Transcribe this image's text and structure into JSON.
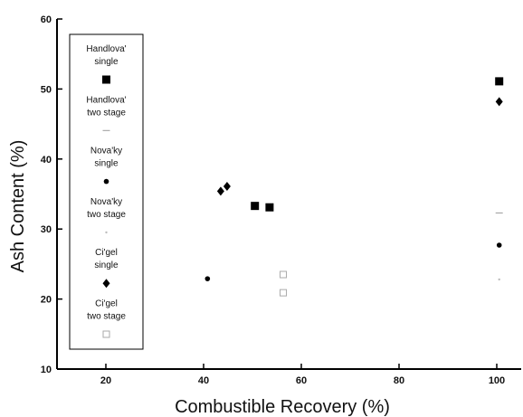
{
  "chart_data": {
    "type": "scatter",
    "xlabel": "Combustible Recovery (%)",
    "ylabel": "Ash Content (%)",
    "xlim": [
      10,
      105
    ],
    "ylim": [
      10,
      60
    ],
    "xticks": [
      20,
      40,
      60,
      80,
      100
    ],
    "yticks": [
      10,
      20,
      30,
      40,
      50,
      60
    ],
    "grid": false,
    "legend_position": "left inside plot",
    "series": [
      {
        "name": "Handlova' single",
        "marker": "square-filled",
        "color": "#000000",
        "points": [
          [
            50.5,
            33.3
          ],
          [
            53.5,
            33.1
          ],
          [
            100.5,
            51.1
          ]
        ]
      },
      {
        "name": "Handlova' two stage",
        "marker": "dash",
        "color": "#aaaaaa",
        "points": [
          [
            100.5,
            32.3
          ]
        ]
      },
      {
        "name": "Nova'ky single",
        "marker": "circle-filled",
        "color": "#000000",
        "points": [
          [
            40.8,
            22.9
          ],
          [
            100.5,
            27.7
          ]
        ]
      },
      {
        "name": "Nova'ky two stage",
        "marker": "dot-light",
        "color": "#bbbbbb",
        "points": [
          [
            100.5,
            22.8
          ]
        ]
      },
      {
        "name": "Ci'gel single",
        "marker": "diamond-filled",
        "color": "#000000",
        "points": [
          [
            43.5,
            35.4
          ],
          [
            44.8,
            36.1
          ],
          [
            100.5,
            48.2
          ]
        ]
      },
      {
        "name": "Ci'gel two stage",
        "marker": "open-light",
        "color": "#999999",
        "points": [
          [
            56.3,
            23.5
          ],
          [
            56.3,
            20.9
          ]
        ]
      }
    ],
    "legend": [
      {
        "line1": "Handlova'",
        "line2": "single",
        "marker": "square-filled"
      },
      {
        "line1": "Handlova'",
        "line2": "two stage",
        "marker": "dash"
      },
      {
        "line1": "Nova'ky",
        "line2": "single",
        "marker": "circle-filled"
      },
      {
        "line1": "Nova'ky",
        "line2": "two stage",
        "marker": "dot-light"
      },
      {
        "line1": "Ci'gel",
        "line2": "single",
        "marker": "diamond-filled"
      },
      {
        "line1": "Ci'gel",
        "line2": "two stage",
        "marker": "open-light"
      }
    ]
  }
}
